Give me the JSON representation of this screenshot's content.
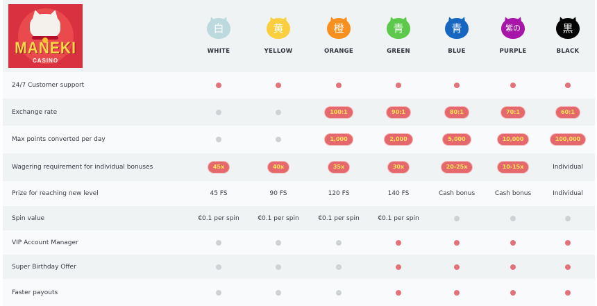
{
  "logo": {
    "title": "MANEKI",
    "subtitle": "CASINO"
  },
  "tiers": [
    {
      "name": "WHITE",
      "glyph": "白",
      "color": "#bcd9de"
    },
    {
      "name": "YELLOW",
      "glyph": "黄",
      "color": "#f9cf3f"
    },
    {
      "name": "ORANGE",
      "glyph": "橙",
      "color": "#f7901e"
    },
    {
      "name": "GREEN",
      "glyph": "青",
      "color": "#5cc94a"
    },
    {
      "name": "BLUE",
      "glyph": "青",
      "color": "#1766c0"
    },
    {
      "name": "PURPLE",
      "glyph": "紫の",
      "color": "#a716a8"
    },
    {
      "name": "BLACK",
      "glyph": "黒",
      "color": "#050505"
    }
  ],
  "rows": [
    {
      "label": "24/7 Customer support",
      "cells": [
        {
          "type": "dot",
          "on": true
        },
        {
          "type": "dot",
          "on": true
        },
        {
          "type": "dot",
          "on": true
        },
        {
          "type": "dot",
          "on": true
        },
        {
          "type": "dot",
          "on": true
        },
        {
          "type": "dot",
          "on": true
        },
        {
          "type": "dot",
          "on": true
        }
      ]
    },
    {
      "label": "Exchange rate",
      "cells": [
        {
          "type": "dot",
          "on": false
        },
        {
          "type": "dot",
          "on": false
        },
        {
          "type": "pill",
          "value": "100:1"
        },
        {
          "type": "pill",
          "value": "90:1"
        },
        {
          "type": "pill",
          "value": "80:1"
        },
        {
          "type": "pill",
          "value": "70:1"
        },
        {
          "type": "pill",
          "value": "60:1"
        }
      ]
    },
    {
      "label": "Max points converted per day",
      "cells": [
        {
          "type": "dot",
          "on": false
        },
        {
          "type": "dot",
          "on": false
        },
        {
          "type": "pill",
          "value": "1,000"
        },
        {
          "type": "pill",
          "value": "2,000"
        },
        {
          "type": "pill",
          "value": "5,000"
        },
        {
          "type": "pill",
          "value": "10,000"
        },
        {
          "type": "pill",
          "value": "100,000"
        }
      ]
    },
    {
      "label": "Wagering requirement for individual bonuses",
      "cells": [
        {
          "type": "pill",
          "value": "45x"
        },
        {
          "type": "pill",
          "value": "40x"
        },
        {
          "type": "pill",
          "value": "35x"
        },
        {
          "type": "pill",
          "value": "30x"
        },
        {
          "type": "pill",
          "value": "20-25x"
        },
        {
          "type": "pill",
          "value": "10-15x"
        },
        {
          "type": "text",
          "value": "Individual"
        }
      ]
    },
    {
      "label": "Prize for reaching new level",
      "cells": [
        {
          "type": "text",
          "value": "45 FS"
        },
        {
          "type": "text",
          "value": "90 FS"
        },
        {
          "type": "text",
          "value": "120 FS"
        },
        {
          "type": "text",
          "value": "140 FS"
        },
        {
          "type": "text",
          "value": "Cash bonus"
        },
        {
          "type": "text",
          "value": "Cash bonus"
        },
        {
          "type": "text",
          "value": "Individual"
        }
      ]
    },
    {
      "label": "Spin value",
      "cells": [
        {
          "type": "text",
          "value": "€0.1 per spin"
        },
        {
          "type": "text",
          "value": "€0.1 per spin"
        },
        {
          "type": "text",
          "value": "€0.1 per spin"
        },
        {
          "type": "text",
          "value": "€0.1 per spin"
        },
        {
          "type": "dot",
          "on": false
        },
        {
          "type": "dot",
          "on": false
        },
        {
          "type": "dot",
          "on": false
        }
      ]
    },
    {
      "label": "VIP Account Manager",
      "cells": [
        {
          "type": "dot",
          "on": false
        },
        {
          "type": "dot",
          "on": false
        },
        {
          "type": "dot",
          "on": false
        },
        {
          "type": "dot",
          "on": true
        },
        {
          "type": "dot",
          "on": true
        },
        {
          "type": "dot",
          "on": true
        },
        {
          "type": "dot",
          "on": true
        }
      ]
    },
    {
      "label": "Super Birthday Offer",
      "cells": [
        {
          "type": "dot",
          "on": false
        },
        {
          "type": "dot",
          "on": false
        },
        {
          "type": "dot",
          "on": false
        },
        {
          "type": "dot",
          "on": true
        },
        {
          "type": "dot",
          "on": true
        },
        {
          "type": "dot",
          "on": true
        },
        {
          "type": "dot",
          "on": true
        }
      ]
    },
    {
      "label": "Faster payouts",
      "cells": [
        {
          "type": "dot",
          "on": false
        },
        {
          "type": "dot",
          "on": false
        },
        {
          "type": "dot",
          "on": false
        },
        {
          "type": "dot",
          "on": true
        },
        {
          "type": "dot",
          "on": true
        },
        {
          "type": "dot",
          "on": true
        },
        {
          "type": "dot",
          "on": true
        }
      ]
    }
  ],
  "colors": {
    "dot_on": "#e3737a",
    "dot_off": "#cfd2d4",
    "pill_bg": "#e5686c",
    "pill_text": "#ffe45a",
    "logo_bg": "#d9313f"
  }
}
